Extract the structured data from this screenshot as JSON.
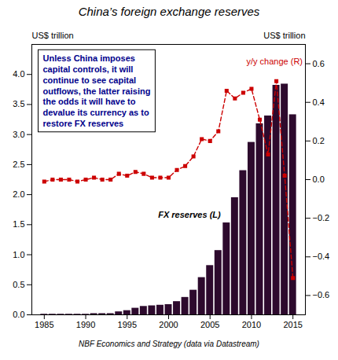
{
  "chart_data": {
    "type": "bar",
    "title": "China’s foreign exchange reserves",
    "ylabel": "US$ trillion",
    "y2label": "US$ trillion",
    "source": "NBF Economics and Strategy (data via Datastream)",
    "annotations": [
      {
        "text": "Unless China imposes\ncapital controls, it will\ncontinue to see capital\noutflows, the latter raising\nthe odds it will have to\ndevalue its currency as to\nrestore FX reserves",
        "color": "#00008b"
      }
    ],
    "x": [
      1985,
      1986,
      1987,
      1988,
      1989,
      1990,
      1991,
      1992,
      1993,
      1994,
      1995,
      1996,
      1997,
      1998,
      1999,
      2000,
      2001,
      2002,
      2003,
      2004,
      2005,
      2006,
      2007,
      2008,
      2009,
      2010,
      2011,
      2012,
      2013,
      2014,
      2015
    ],
    "series": [
      {
        "name": "FX reserves (L)",
        "type": "bar",
        "color": "#2d0a2d",
        "values": [
          0.01,
          0.01,
          0.01,
          0.01,
          0.01,
          0.01,
          0.02,
          0.02,
          0.02,
          0.05,
          0.07,
          0.11,
          0.14,
          0.15,
          0.16,
          0.17,
          0.22,
          0.29,
          0.41,
          0.62,
          0.82,
          1.07,
          1.53,
          1.95,
          2.4,
          2.87,
          3.18,
          3.31,
          3.82,
          3.84,
          3.33
        ]
      },
      {
        "name": "y/y change (R)",
        "type": "line",
        "axis": "y2",
        "color": "#cc0000",
        "line_style": "dashed",
        "marker": "square",
        "values": [
          -0.01,
          0.0,
          0.0,
          0.0,
          -0.01,
          0.0,
          0.01,
          0.0,
          0.0,
          0.03,
          0.02,
          0.04,
          0.03,
          0.01,
          0.01,
          0.01,
          0.05,
          0.07,
          0.12,
          0.21,
          0.2,
          0.25,
          0.46,
          0.42,
          0.45,
          0.47,
          0.31,
          0.13,
          0.51,
          0.02,
          -0.51
        ]
      }
    ],
    "xlim": [
      1983.5,
      2016.5
    ],
    "xticks": [
      1985,
      1990,
      1995,
      2000,
      2005,
      2010,
      2015
    ],
    "ylim": [
      0,
      4.5
    ],
    "yticks": [
      {
        "value": 0,
        "label": "0.0"
      },
      0.5,
      {
        "value": 1,
        "label": "1.0"
      },
      1.5,
      {
        "value": 2,
        "label": "2.0"
      },
      2.5,
      {
        "value": 3,
        "label": "3.0"
      },
      3.5,
      {
        "value": 4,
        "label": "4.0"
      }
    ],
    "y2lim": [
      -0.7,
      0.7
    ],
    "y2ticks": [
      {
        "value": -0.6,
        "label": "−0.6"
      },
      {
        "value": -0.4,
        "label": "−0.4"
      },
      {
        "value": -0.2,
        "label": "−0.2"
      },
      {
        "value": 0,
        "label": "0.0"
      },
      0.2,
      0.4,
      0.6
    ]
  }
}
